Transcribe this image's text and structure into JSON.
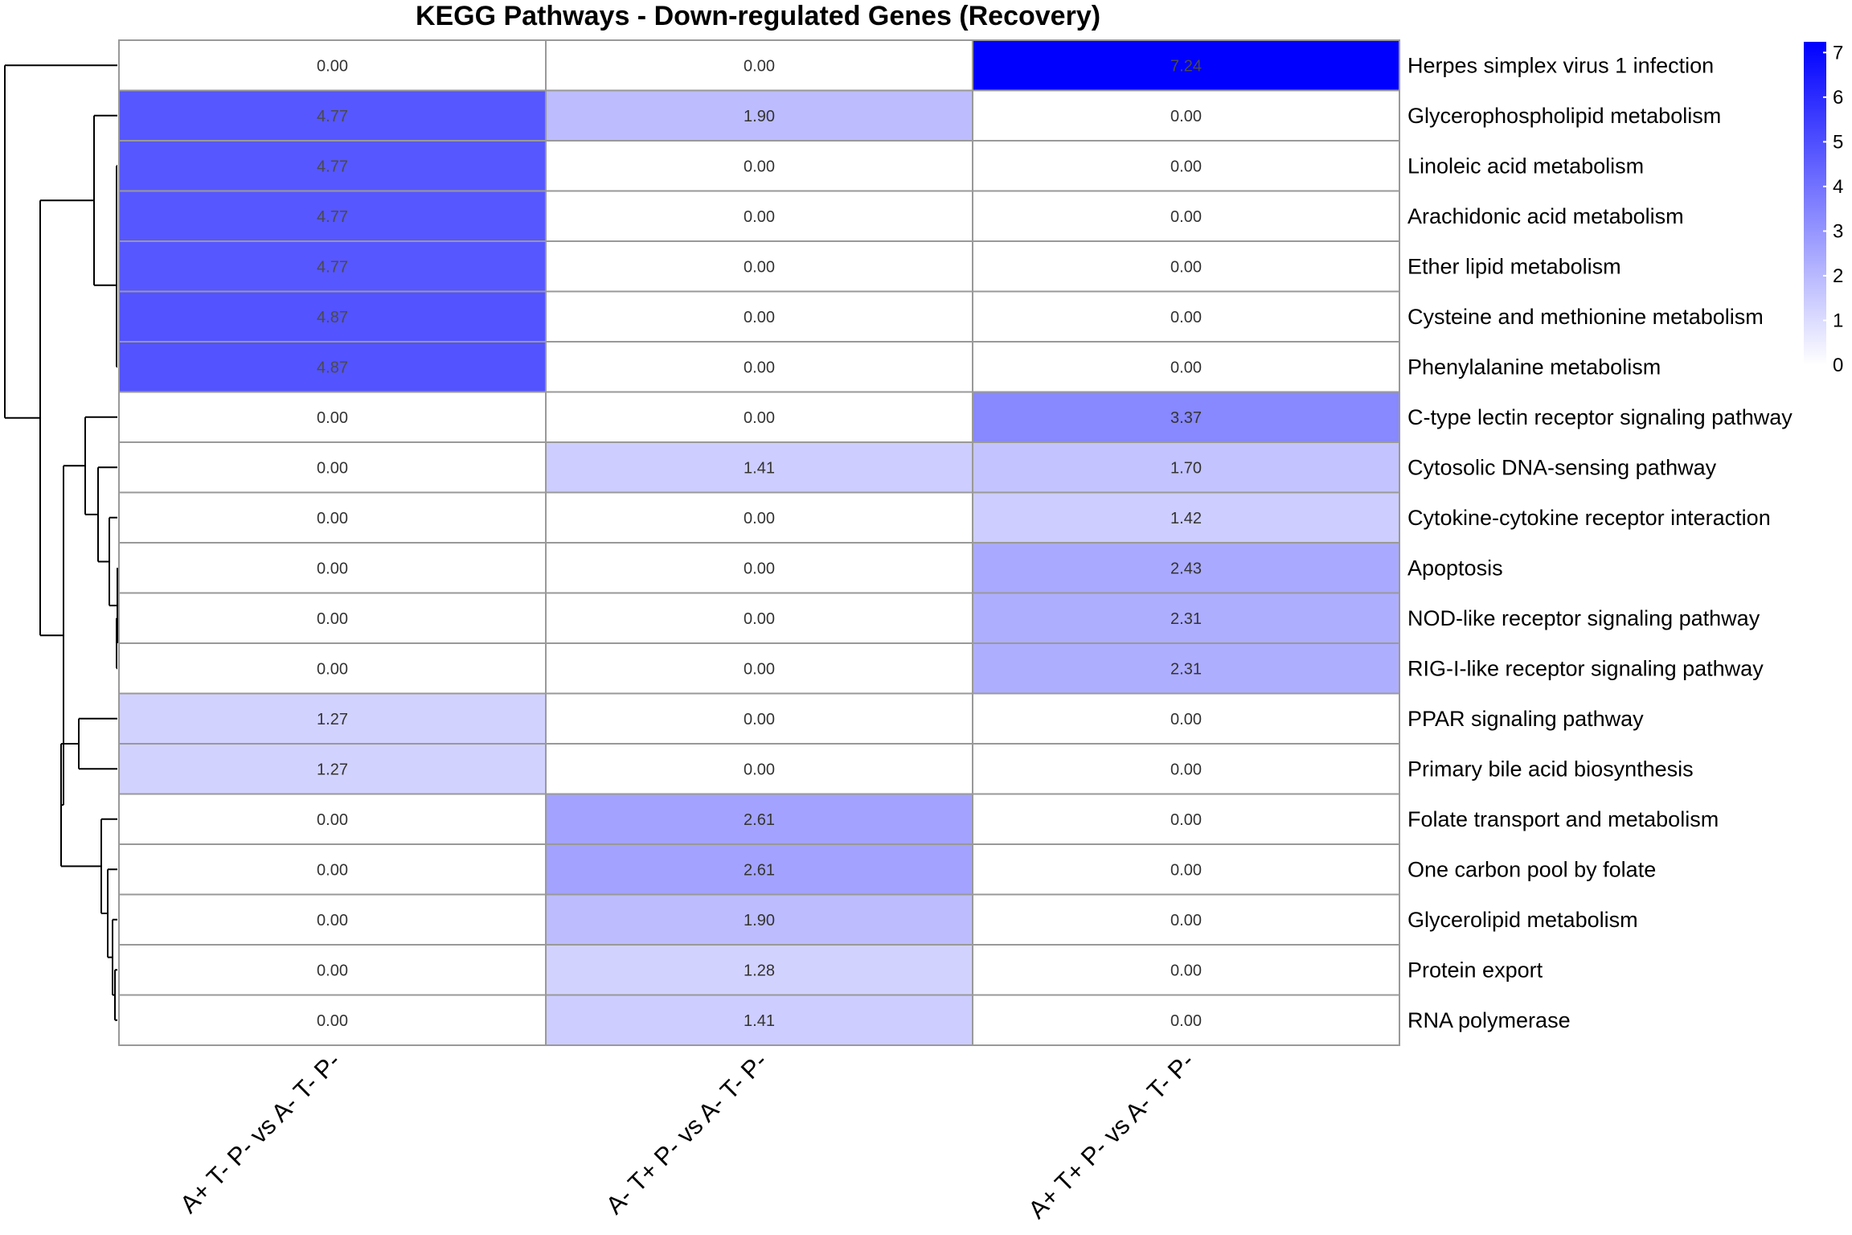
{
  "chart_data": {
    "type": "heatmap",
    "title": "KEGG Pathways - Down-regulated Genes (Recovery)",
    "columns": [
      "A+ T- P- vs A- T- P-",
      "A- T+ P- vs A- T- P-",
      "A+ T+ P- vs A- T- P-"
    ],
    "rows": [
      "Herpes simplex virus 1 infection",
      "Glycerophospholipid metabolism",
      "Linoleic acid metabolism",
      "Arachidonic acid metabolism",
      "Ether lipid metabolism",
      "Cysteine and methionine metabolism",
      "Phenylalanine metabolism",
      "C-type lectin receptor signaling pathway",
      "Cytosolic DNA-sensing pathway",
      "Cytokine-cytokine receptor interaction",
      "Apoptosis",
      "NOD-like receptor signaling pathway",
      "RIG-I-like receptor signaling pathway",
      "PPAR signaling pathway",
      "Primary bile acid biosynthesis",
      "Folate transport and metabolism",
      "One carbon pool by folate",
      "Glycerolipid metabolism",
      "Protein export",
      "RNA polymerase"
    ],
    "values": [
      [
        0.0,
        0.0,
        7.24
      ],
      [
        4.77,
        1.9,
        0.0
      ],
      [
        4.77,
        0.0,
        0.0
      ],
      [
        4.77,
        0.0,
        0.0
      ],
      [
        4.77,
        0.0,
        0.0
      ],
      [
        4.87,
        0.0,
        0.0
      ],
      [
        4.87,
        0.0,
        0.0
      ],
      [
        0.0,
        0.0,
        3.37
      ],
      [
        0.0,
        1.41,
        1.7
      ],
      [
        0.0,
        0.0,
        1.42
      ],
      [
        0.0,
        0.0,
        2.43
      ],
      [
        0.0,
        0.0,
        2.31
      ],
      [
        0.0,
        0.0,
        2.31
      ],
      [
        1.27,
        0.0,
        0.0
      ],
      [
        1.27,
        0.0,
        0.0
      ],
      [
        0.0,
        2.61,
        0.0
      ],
      [
        0.0,
        2.61,
        0.0
      ],
      [
        0.0,
        1.9,
        0.0
      ],
      [
        0.0,
        1.28,
        0.0
      ],
      [
        0.0,
        1.41,
        0.0
      ]
    ],
    "value_range": [
      0,
      7.24
    ],
    "color_scale": {
      "low": "#ffffff",
      "high": "#0000ff"
    },
    "legend": {
      "ticks": [
        "0",
        "1",
        "2",
        "3",
        "4",
        "5",
        "6",
        "7"
      ],
      "position": "top-right"
    },
    "row_dendrogram": true
  }
}
